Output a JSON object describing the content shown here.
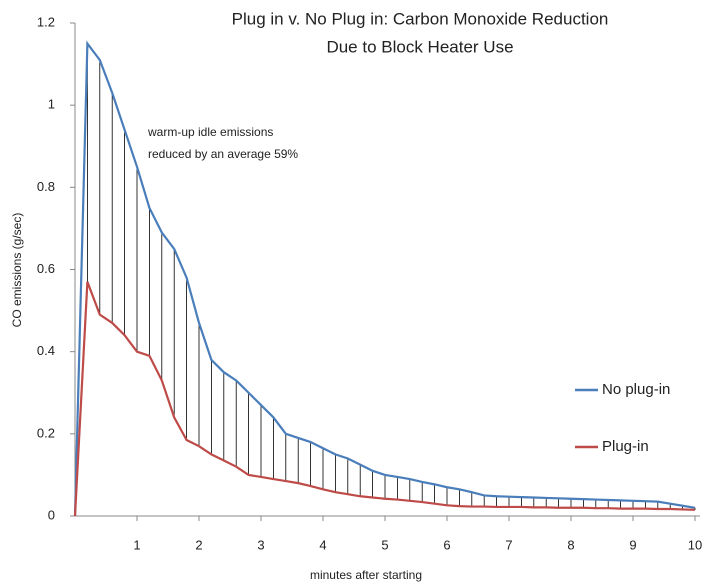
{
  "chart_data": {
    "type": "line",
    "title": [
      "Plug in v. No Plug in: Carbon Monoxide Reduction",
      "Due to Block Heater Use"
    ],
    "annotation": [
      "warm-up idle emissions",
      "reduced by an average 59%"
    ],
    "x_label": "minutes after starting",
    "y_label": "CO emissions (g/sec)",
    "x": [
      0,
      0.2,
      0.4,
      0.6,
      0.8,
      1,
      1.2,
      1.4,
      1.6,
      1.8,
      2,
      2.2,
      2.4,
      2.6,
      2.8,
      3,
      3.2,
      3.4,
      3.6,
      3.8,
      4,
      4.2,
      4.4,
      4.6,
      4.8,
      5,
      5.2,
      5.4,
      5.6,
      5.8,
      6,
      6.2,
      6.4,
      6.6,
      6.8,
      7,
      7.2,
      7.4,
      7.6,
      7.8,
      8,
      8.2,
      8.4,
      8.6,
      8.8,
      9,
      9.2,
      9.4,
      9.6,
      9.8,
      10
    ],
    "series": [
      {
        "name": "No plug-in",
        "color": "#4a7ebb",
        "values": [
          0,
          1.15,
          1.11,
          1.03,
          0.94,
          0.85,
          0.75,
          0.69,
          0.65,
          0.58,
          0.47,
          0.38,
          0.35,
          0.33,
          0.3,
          0.27,
          0.24,
          0.2,
          0.19,
          0.18,
          0.165,
          0.15,
          0.14,
          0.125,
          0.11,
          0.1,
          0.095,
          0.09,
          0.083,
          0.077,
          0.07,
          0.065,
          0.058,
          0.05,
          0.048,
          0.047,
          0.046,
          0.045,
          0.044,
          0.043,
          0.042,
          0.041,
          0.04,
          0.039,
          0.038,
          0.037,
          0.036,
          0.035,
          0.03,
          0.025,
          0.02
        ]
      },
      {
        "name": "Plug-in",
        "color": "#be4b48",
        "values": [
          0,
          0.57,
          0.49,
          0.47,
          0.44,
          0.4,
          0.39,
          0.33,
          0.24,
          0.185,
          0.17,
          0.15,
          0.135,
          0.12,
          0.1,
          0.095,
          0.09,
          0.085,
          0.08,
          0.073,
          0.065,
          0.058,
          0.053,
          0.048,
          0.045,
          0.042,
          0.04,
          0.037,
          0.034,
          0.03,
          0.026,
          0.024,
          0.023,
          0.023,
          0.022,
          0.022,
          0.022,
          0.021,
          0.021,
          0.02,
          0.02,
          0.02,
          0.019,
          0.019,
          0.018,
          0.018,
          0.018,
          0.017,
          0.017,
          0.016,
          0.015
        ]
      }
    ],
    "drop_lines": true,
    "xlim": [
      0,
      10
    ],
    "xticks": [
      1,
      2,
      3,
      4,
      5,
      6,
      7,
      8,
      9,
      10
    ],
    "ylim": [
      0,
      1.2
    ],
    "yticks": [
      0,
      0.2,
      0.4,
      0.6,
      0.8,
      1,
      1.2
    ],
    "legend": "right"
  }
}
